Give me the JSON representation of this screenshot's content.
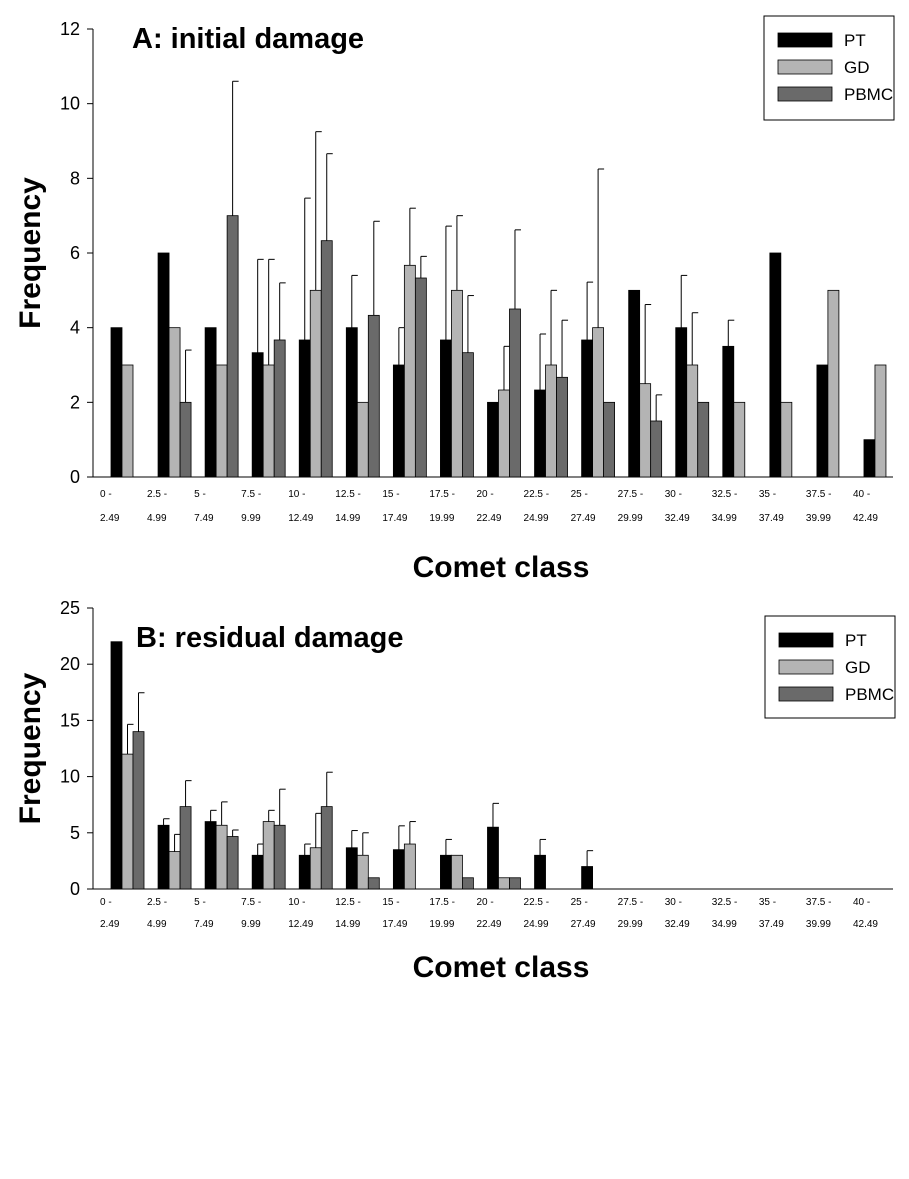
{
  "chart_data": [
    {
      "type": "bar",
      "title": "A: initial damage",
      "xlabel": "Comet class",
      "ylabel": "Frequency",
      "ylim": [
        0,
        12
      ],
      "yticks": [
        0,
        2,
        4,
        6,
        8,
        10,
        12
      ],
      "legend_position": "top-right",
      "categories": [
        [
          "0 -",
          "2.49"
        ],
        [
          "2.5 -",
          "4.99"
        ],
        [
          "5 -",
          "7.49"
        ],
        [
          "7.5 -",
          "9.99"
        ],
        [
          "10 -",
          "12.49"
        ],
        [
          "12.5 -",
          "14.99"
        ],
        [
          "15 -",
          "17.49"
        ],
        [
          "17.5 -",
          "19.99"
        ],
        [
          "20 -",
          "22.49"
        ],
        [
          "22.5 -",
          "24.99"
        ],
        [
          "25 -",
          "27.49"
        ],
        [
          "27.5 -",
          "29.99"
        ],
        [
          "30 -",
          "32.49"
        ],
        [
          "32.5 -",
          "34.99"
        ],
        [
          "35 -",
          "37.49"
        ],
        [
          "37.5 -",
          "39.99"
        ],
        [
          "40 -",
          "42.49"
        ]
      ],
      "series": [
        {
          "name": "PT",
          "color": "#000000",
          "values": [
            4,
            6,
            4,
            3.33,
            3.67,
            4,
            3,
            3.67,
            2,
            2.33,
            3.67,
            5,
            4,
            3.5,
            6,
            3,
            1
          ],
          "errors": [
            null,
            null,
            null,
            2.5,
            3.8,
            1.4,
            1.0,
            3.05,
            null,
            1.5,
            1.55,
            null,
            1.4,
            0.7,
            null,
            null,
            null
          ]
        },
        {
          "name": "GD",
          "color": "#b4b4b4",
          "values": [
            3,
            4,
            3,
            3,
            5,
            2,
            5.67,
            5,
            2.33,
            3,
            4,
            2.5,
            3,
            2,
            2,
            5,
            3
          ],
          "errors": [
            null,
            null,
            null,
            2.83,
            4.25,
            null,
            1.53,
            2.0,
            1.17,
            2.0,
            4.25,
            2.12,
            1.4,
            null,
            null,
            null,
            null
          ]
        },
        {
          "name": "PBMC",
          "color": "#6a6a6a",
          "values": [
            null,
            2,
            7,
            3.67,
            6.33,
            4.33,
            5.33,
            3.33,
            4.5,
            2.67,
            2,
            1.5,
            2,
            null,
            null,
            null,
            null
          ],
          "errors": [
            null,
            1.4,
            3.6,
            1.53,
            2.33,
            2.52,
            0.58,
            1.53,
            2.12,
            1.53,
            null,
            0.7,
            null,
            null,
            null,
            null,
            null
          ]
        }
      ]
    },
    {
      "type": "bar",
      "title": "B: residual damage",
      "xlabel": "Comet class",
      "ylabel": "Frequency",
      "ylim": [
        0,
        25
      ],
      "yticks": [
        0,
        5,
        10,
        15,
        20,
        25
      ],
      "legend_position": "top-right",
      "categories": [
        [
          "0 -",
          "2.49"
        ],
        [
          "2.5 -",
          "4.99"
        ],
        [
          "5 -",
          "7.49"
        ],
        [
          "7.5 -",
          "9.99"
        ],
        [
          "10 -",
          "12.49"
        ],
        [
          "12.5 -",
          "14.99"
        ],
        [
          "15 -",
          "17.49"
        ],
        [
          "17.5 -",
          "19.99"
        ],
        [
          "20 -",
          "22.49"
        ],
        [
          "22.5 -",
          "24.99"
        ],
        [
          "25 -",
          "27.49"
        ],
        [
          "27.5 -",
          "29.99"
        ],
        [
          "30 -",
          "32.49"
        ],
        [
          "32.5 -",
          "34.99"
        ],
        [
          "35 -",
          "37.49"
        ],
        [
          "37.5 -",
          "39.99"
        ],
        [
          "40 -",
          "42.49"
        ]
      ],
      "series": [
        {
          "name": "PT",
          "color": "#000000",
          "values": [
            22,
            5.67,
            6,
            3,
            3,
            3.67,
            3.5,
            3,
            5.5,
            3,
            2,
            null,
            null,
            null,
            null,
            null,
            null
          ],
          "errors": [
            null,
            0.58,
            1.0,
            1.0,
            1.0,
            1.53,
            2.12,
            1.41,
            2.12,
            1.41,
            1.41,
            null,
            null,
            null,
            null,
            null,
            null
          ]
        },
        {
          "name": "GD",
          "color": "#b4b4b4",
          "values": [
            12,
            3.33,
            5.67,
            6,
            3.67,
            3,
            4,
            3,
            1,
            null,
            null,
            null,
            null,
            null,
            null,
            null,
            null
          ],
          "errors": [
            2.65,
            1.53,
            2.08,
            1.0,
            3.06,
            2.0,
            2.0,
            null,
            null,
            null,
            null,
            null,
            null,
            null,
            null,
            null,
            null
          ]
        },
        {
          "name": "PBMC",
          "color": "#6a6a6a",
          "values": [
            14,
            7.33,
            4.67,
            5.67,
            7.33,
            1,
            null,
            1,
            1,
            null,
            null,
            null,
            null,
            null,
            null,
            null,
            null
          ],
          "errors": [
            3.46,
            2.31,
            0.58,
            3.21,
            3.06,
            null,
            null,
            null,
            null,
            null,
            null,
            null,
            null,
            null,
            null,
            null,
            null
          ]
        }
      ]
    }
  ]
}
